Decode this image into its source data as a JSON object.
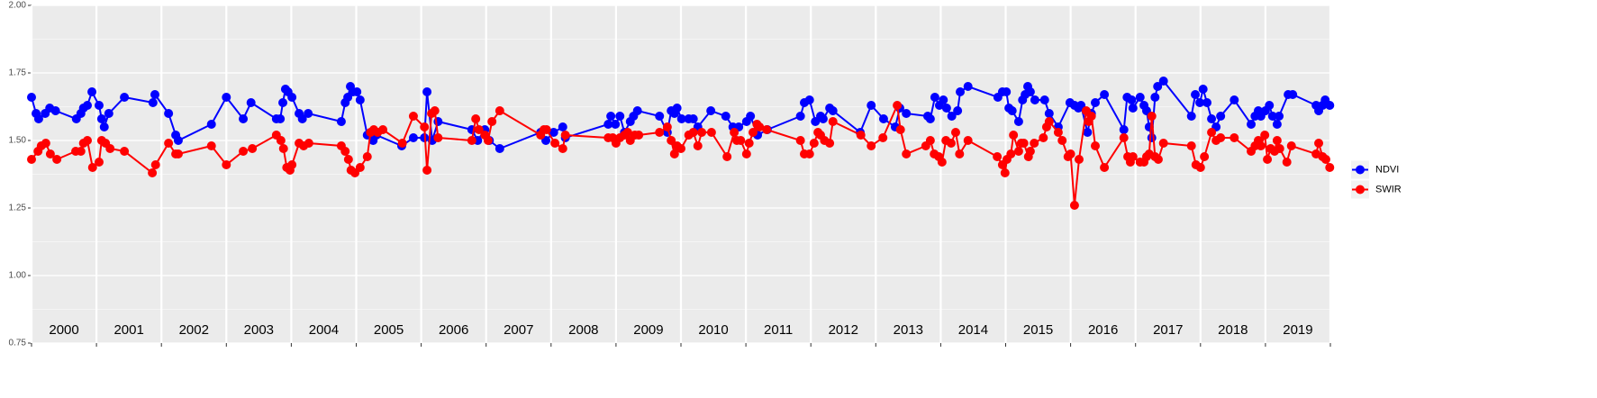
{
  "chart_data": {
    "type": "line",
    "xlim": [
      2000,
      2020
    ],
    "xticks": [
      2000,
      2001,
      2002,
      2003,
      2004,
      2005,
      2006,
      2007,
      2008,
      2009,
      2010,
      2011,
      2012,
      2013,
      2014,
      2015,
      2016,
      2017,
      2018,
      2019,
      2020
    ],
    "year_labels": [
      "2000",
      "2001",
      "2002",
      "2003",
      "2004",
      "2005",
      "2006",
      "2007",
      "2008",
      "2009",
      "2010",
      "2011",
      "2012",
      "2013",
      "2014",
      "2015",
      "2016",
      "2017",
      "2018",
      "2019"
    ],
    "ylim": [
      0.75,
      2.0
    ],
    "yticks": [
      0.75,
      {
        "value": 1,
        "label": "1.00"
      },
      {
        "value": 1.25,
        "label": "1.25"
      },
      {
        "value": 1.5,
        "label": "1.50"
      },
      {
        "value": 1.75,
        "label": "1.75"
      },
      {
        "value": 2,
        "label": "2.00"
      }
    ],
    "grid": true,
    "legend": "right",
    "series": [
      {
        "name": "NDVI",
        "color": "#0000ff",
        "x": [
          2000.0,
          2000.07,
          2000.11,
          2000.21,
          2000.28,
          2000.37,
          2000.69,
          2000.76,
          2000.8,
          2000.86,
          2000.93,
          2001.04,
          2001.08,
          2001.12,
          2001.19,
          2001.43,
          2001.87,
          2001.9,
          2002.11,
          2002.22,
          2002.26,
          2002.77,
          2003.0,
          2003.26,
          2003.38,
          2003.77,
          2003.83,
          2003.87,
          2003.91,
          2003.95,
          2004.01,
          2004.12,
          2004.17,
          2004.26,
          2004.77,
          2004.83,
          2004.87,
          2004.91,
          2004.95,
          2005.01,
          2005.06,
          2005.17,
          2005.26,
          2005.31,
          2005.7,
          2005.88,
          2006.05,
          2006.09,
          2006.17,
          2006.26,
          2006.78,
          2006.87,
          2006.98,
          2007.05,
          2007.21,
          2007.84,
          2007.92,
          2008.04,
          2008.18,
          2008.22,
          2008.88,
          2008.92,
          2008.99,
          2009.06,
          2009.13,
          2009.22,
          2009.27,
          2009.33,
          2009.67,
          2009.79,
          2009.85,
          2009.9,
          2009.94,
          2010.01,
          2010.12,
          2010.19,
          2010.26,
          2010.46,
          2010.69,
          2010.8,
          2010.89,
          2011.01,
          2011.07,
          2011.18,
          2011.33,
          2011.84,
          2011.9,
          2011.98,
          2012.07,
          2012.15,
          2012.19,
          2012.29,
          2012.34,
          2012.76,
          2012.93,
          2013.12,
          2013.3,
          2013.37,
          2013.47,
          2013.8,
          2013.84,
          2013.91,
          2013.98,
          2014.04,
          2014.09,
          2014.17,
          2014.26,
          2014.3,
          2014.42,
          2014.88,
          2014.95,
          2015.01,
          2015.05,
          2015.1,
          2015.2,
          2015.26,
          2015.3,
          2015.34,
          2015.38,
          2015.45,
          2015.6,
          2015.67,
          2015.81,
          2015.99,
          2016.06,
          2016.12,
          2016.16,
          2016.26,
          2016.32,
          2016.38,
          2016.52,
          2016.82,
          2016.87,
          2016.94,
          2016.96,
          2017.07,
          2017.13,
          2017.17,
          2017.21,
          2017.25,
          2017.3,
          2017.34,
          2017.43,
          2017.86,
          2017.92,
          2017.99,
          2018.04,
          2018.1,
          2018.17,
          2018.24,
          2018.31,
          2018.52,
          2018.78,
          2018.84,
          2018.89,
          2018.93,
          2019.0,
          2019.06,
          2019.11,
          2019.18,
          2019.21,
          2019.35,
          2019.42,
          2019.78,
          2019.82,
          2019.88,
          2019.92,
          2019.99
        ],
        "values": [
          1.66,
          1.6,
          1.58,
          1.6,
          1.62,
          1.61,
          1.58,
          1.6,
          1.62,
          1.63,
          1.68,
          1.63,
          1.58,
          1.55,
          1.6,
          1.66,
          1.64,
          1.67,
          1.6,
          1.52,
          1.5,
          1.56,
          1.66,
          1.58,
          1.64,
          1.58,
          1.58,
          1.64,
          1.69,
          1.68,
          1.66,
          1.6,
          1.58,
          1.6,
          1.57,
          1.64,
          1.66,
          1.7,
          1.68,
          1.68,
          1.65,
          1.52,
          1.5,
          1.52,
          1.48,
          1.51,
          1.51,
          1.68,
          1.5,
          1.57,
          1.54,
          1.5,
          1.54,
          1.5,
          1.47,
          1.53,
          1.5,
          1.53,
          1.55,
          1.51,
          1.56,
          1.59,
          1.56,
          1.59,
          1.53,
          1.57,
          1.59,
          1.61,
          1.59,
          1.53,
          1.61,
          1.6,
          1.62,
          1.58,
          1.58,
          1.58,
          1.55,
          1.61,
          1.59,
          1.55,
          1.55,
          1.57,
          1.59,
          1.52,
          1.54,
          1.59,
          1.64,
          1.65,
          1.57,
          1.59,
          1.58,
          1.62,
          1.61,
          1.53,
          1.63,
          1.58,
          1.55,
          1.62,
          1.6,
          1.59,
          1.58,
          1.66,
          1.63,
          1.65,
          1.62,
          1.59,
          1.61,
          1.68,
          1.7,
          1.66,
          1.68,
          1.68,
          1.62,
          1.61,
          1.57,
          1.65,
          1.67,
          1.7,
          1.68,
          1.65,
          1.65,
          1.6,
          1.55,
          1.64,
          1.63,
          1.62,
          1.63,
          1.53,
          1.6,
          1.64,
          1.67,
          1.54,
          1.66,
          1.65,
          1.62,
          1.66,
          1.63,
          1.61,
          1.55,
          1.51,
          1.66,
          1.7,
          1.72,
          1.59,
          1.67,
          1.64,
          1.69,
          1.64,
          1.58,
          1.55,
          1.59,
          1.65,
          1.56,
          1.59,
          1.61,
          1.59,
          1.61,
          1.63,
          1.59,
          1.56,
          1.59,
          1.67,
          1.67,
          1.63,
          1.61,
          1.63,
          1.65,
          1.63
        ]
      },
      {
        "name": "SWIR",
        "color": "#ff0000",
        "x": [
          2000.0,
          2000.1,
          2000.15,
          2000.22,
          2000.29,
          2000.39,
          2000.68,
          2000.76,
          2000.8,
          2000.86,
          2000.94,
          2001.04,
          2001.08,
          2001.14,
          2001.21,
          2001.43,
          2001.86,
          2001.91,
          2002.11,
          2002.22,
          2002.26,
          2002.77,
          2003.0,
          2003.26,
          2003.4,
          2003.77,
          2003.84,
          2003.88,
          2003.93,
          2003.98,
          2004.01,
          2004.12,
          2004.19,
          2004.27,
          2004.77,
          2004.83,
          2004.88,
          2004.92,
          2004.98,
          2005.06,
          2005.17,
          2005.22,
          2005.27,
          2005.33,
          2005.41,
          2005.71,
          2005.88,
          2006.05,
          2006.09,
          2006.16,
          2006.21,
          2006.26,
          2006.78,
          2006.84,
          2006.89,
          2006.98,
          2007.03,
          2007.09,
          2007.21,
          2007.84,
          2007.89,
          2007.93,
          2008.06,
          2008.18,
          2008.22,
          2008.88,
          2008.95,
          2009.0,
          2009.06,
          2009.13,
          2009.18,
          2009.22,
          2009.29,
          2009.35,
          2009.67,
          2009.79,
          2009.85,
          2009.9,
          2009.94,
          2010.0,
          2010.12,
          2010.19,
          2010.26,
          2010.32,
          2010.47,
          2010.71,
          2010.82,
          2010.86,
          2010.92,
          2011.01,
          2011.05,
          2011.11,
          2011.17,
          2011.21,
          2011.32,
          2011.84,
          2011.9,
          2011.98,
          2012.05,
          2012.11,
          2012.15,
          2012.21,
          2012.29,
          2012.34,
          2012.77,
          2012.93,
          2013.11,
          2013.33,
          2013.38,
          2013.47,
          2013.77,
          2013.84,
          2013.9,
          2013.97,
          2014.02,
          2014.08,
          2014.16,
          2014.23,
          2014.29,
          2014.42,
          2014.87,
          2014.95,
          2014.99,
          2015.02,
          2015.08,
          2015.12,
          2015.2,
          2015.24,
          2015.28,
          2015.35,
          2015.38,
          2015.44,
          2015.58,
          2015.63,
          2015.67,
          2015.81,
          2015.87,
          2015.96,
          2016.0,
          2016.06,
          2016.13,
          2016.24,
          2016.28,
          2016.32,
          2016.38,
          2016.52,
          2016.82,
          2016.88,
          2016.92,
          2016.96,
          2017.07,
          2017.13,
          2017.17,
          2017.21,
          2017.25,
          2017.3,
          2017.35,
          2017.43,
          2017.86,
          2017.93,
          2018.0,
          2018.06,
          2018.17,
          2018.24,
          2018.31,
          2018.52,
          2018.78,
          2018.84,
          2018.89,
          2018.93,
          2018.99,
          2019.03,
          2019.08,
          2019.14,
          2019.18,
          2019.22,
          2019.33,
          2019.4,
          2019.78,
          2019.82,
          2019.88,
          2019.93,
          2019.99
        ],
        "values": [
          1.43,
          1.46,
          1.48,
          1.49,
          1.45,
          1.43,
          1.46,
          1.46,
          1.49,
          1.5,
          1.4,
          1.42,
          1.5,
          1.49,
          1.47,
          1.46,
          1.38,
          1.41,
          1.49,
          1.45,
          1.45,
          1.48,
          1.41,
          1.46,
          1.47,
          1.52,
          1.5,
          1.47,
          1.4,
          1.39,
          1.41,
          1.49,
          1.48,
          1.49,
          1.48,
          1.46,
          1.43,
          1.39,
          1.38,
          1.4,
          1.44,
          1.53,
          1.54,
          1.53,
          1.54,
          1.49,
          1.59,
          1.55,
          1.39,
          1.6,
          1.61,
          1.51,
          1.5,
          1.58,
          1.54,
          1.52,
          1.5,
          1.57,
          1.61,
          1.52,
          1.54,
          1.54,
          1.49,
          1.47,
          1.52,
          1.51,
          1.51,
          1.49,
          1.51,
          1.52,
          1.53,
          1.5,
          1.52,
          1.52,
          1.53,
          1.55,
          1.5,
          1.45,
          1.48,
          1.47,
          1.52,
          1.53,
          1.48,
          1.53,
          1.53,
          1.44,
          1.53,
          1.5,
          1.5,
          1.45,
          1.49,
          1.53,
          1.56,
          1.55,
          1.54,
          1.5,
          1.45,
          1.45,
          1.49,
          1.53,
          1.52,
          1.5,
          1.49,
          1.57,
          1.52,
          1.48,
          1.51,
          1.63,
          1.54,
          1.45,
          1.48,
          1.5,
          1.45,
          1.44,
          1.42,
          1.5,
          1.49,
          1.53,
          1.45,
          1.5,
          1.44,
          1.41,
          1.38,
          1.43,
          1.45,
          1.52,
          1.46,
          1.49,
          1.49,
          1.44,
          1.46,
          1.49,
          1.51,
          1.55,
          1.57,
          1.53,
          1.5,
          1.44,
          1.45,
          1.26,
          1.43,
          1.61,
          1.57,
          1.59,
          1.48,
          1.4,
          1.51,
          1.44,
          1.42,
          1.44,
          1.42,
          1.42,
          1.44,
          1.45,
          1.59,
          1.44,
          1.43,
          1.49,
          1.48,
          1.41,
          1.4,
          1.44,
          1.53,
          1.5,
          1.51,
          1.51,
          1.46,
          1.48,
          1.5,
          1.48,
          1.52,
          1.43,
          1.47,
          1.46,
          1.5,
          1.47,
          1.42,
          1.48,
          1.45,
          1.49,
          1.44,
          1.43,
          1.4
        ]
      }
    ]
  }
}
